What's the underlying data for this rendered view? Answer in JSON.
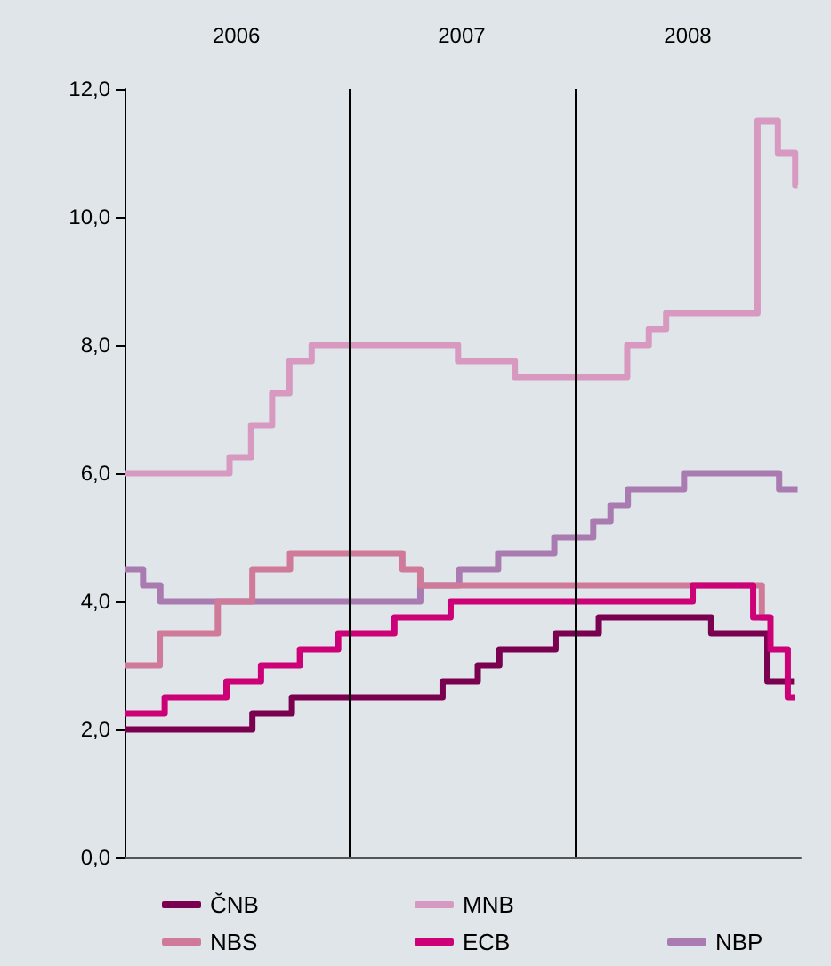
{
  "chart_data": {
    "type": "step",
    "xlim": [
      "2006-01-01",
      "2008-12-31"
    ],
    "xticks": [
      {
        "value": "2006-07-01",
        "label": "2006"
      },
      {
        "value": "2007-07-01",
        "label": "2007"
      },
      {
        "value": "2008-07-01",
        "label": "2008"
      }
    ],
    "ylim": [
      0,
      12
    ],
    "yticks": [
      {
        "value": 0,
        "label": "0,0"
      },
      {
        "value": 2,
        "label": "2,0"
      },
      {
        "value": 4,
        "label": "4,0"
      },
      {
        "value": 6,
        "label": "6,0"
      },
      {
        "value": 8,
        "label": "8,0"
      },
      {
        "value": 10,
        "label": "10,0"
      },
      {
        "value": 12,
        "label": "12,0"
      }
    ],
    "grid": false,
    "legend": "bottom",
    "marker": "none",
    "line_style": "solid",
    "ref_lines": [
      {
        "axis": "x",
        "value": "2007-01-01",
        "label": null,
        "color": "#000000"
      },
      {
        "axis": "x",
        "value": "2008-01-01",
        "label": null,
        "color": "#000000"
      }
    ],
    "series": [
      {
        "name": "ČNB",
        "color": "#7a0050",
        "x": [
          "2006-01-01",
          "2006-07-27",
          "2006-09-29",
          "2007-05-31",
          "2007-07-27",
          "2007-08-31",
          "2007-11-30",
          "2008-02-08",
          "2008-08-08",
          "2008-11-07",
          "2008-12-20"
        ],
        "values": [
          2.0,
          2.25,
          2.5,
          2.75,
          3.0,
          3.25,
          3.5,
          3.75,
          3.5,
          2.75,
          2.75
        ]
      },
      {
        "name": "MNB",
        "color": "#d899c0",
        "x": [
          "2006-01-01",
          "2006-06-20",
          "2006-07-25",
          "2006-08-28",
          "2006-09-25",
          "2006-10-31",
          "2007-06-25",
          "2007-09-25",
          "2008-03-25",
          "2008-04-29",
          "2008-05-27",
          "2008-10-22",
          "2008-11-24",
          "2008-12-22",
          "2008-12-26"
        ],
        "values": [
          6.0,
          6.25,
          6.75,
          7.25,
          7.75,
          8.0,
          7.75,
          7.5,
          8.0,
          8.25,
          8.5,
          11.5,
          11.0,
          10.5,
          10.5
        ]
      },
      {
        "name": "NBP",
        "color": "#a97bb0",
        "x": [
          "2006-01-01",
          "2006-01-31",
          "2006-02-28",
          "2007-04-25",
          "2007-06-27",
          "2007-08-29",
          "2007-11-28",
          "2008-01-30",
          "2008-02-27",
          "2008-03-26",
          "2008-06-25",
          "2008-11-26",
          "2008-12-26"
        ],
        "values": [
          4.5,
          4.25,
          4.0,
          4.25,
          4.5,
          4.75,
          5.0,
          5.25,
          5.5,
          5.75,
          6.0,
          5.75,
          5.75
        ]
      },
      {
        "name": "NBS",
        "color": "#d07a9a",
        "x": [
          "2006-01-01",
          "2006-02-27",
          "2006-06-01",
          "2006-07-27",
          "2006-09-26",
          "2007-03-27",
          "2007-04-25",
          "2008-10-29",
          "2008-11-10"
        ],
        "values": [
          3.0,
          3.5,
          4.0,
          4.5,
          4.75,
          4.5,
          4.25,
          3.75,
          3.75
        ]
      },
      {
        "name": "ECB",
        "color": "#cc0077",
        "x": [
          "2006-01-01",
          "2006-03-07",
          "2006-06-15",
          "2006-08-10",
          "2006-10-12",
          "2006-12-13",
          "2007-03-14",
          "2007-06-13",
          "2008-07-09",
          "2008-10-15",
          "2008-11-12",
          "2008-12-10",
          "2008-12-22"
        ],
        "values": [
          2.25,
          2.5,
          2.75,
          3.0,
          3.25,
          3.5,
          3.75,
          4.0,
          4.25,
          3.75,
          3.25,
          2.5,
          2.5
        ]
      }
    ]
  }
}
